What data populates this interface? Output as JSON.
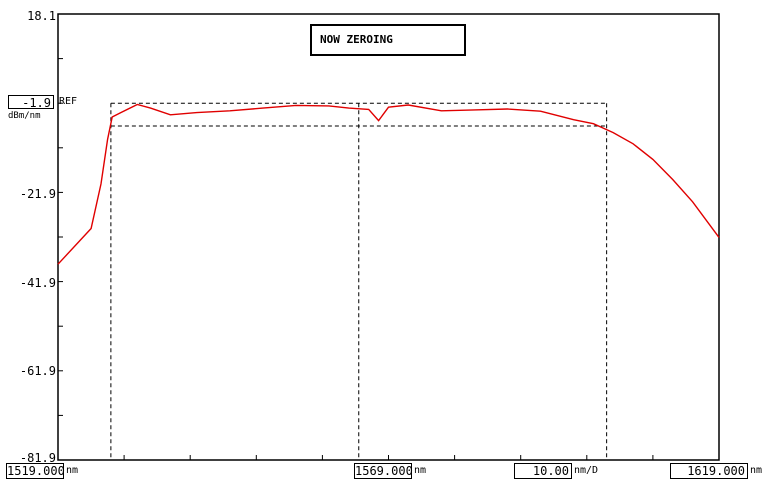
{
  "status": {
    "message": "NOW ZEROING"
  },
  "reference": {
    "level": "-1.9",
    "tag": "REF",
    "unit": "dBm/nm"
  },
  "y_axis": {
    "ticks": [
      "18.1",
      "-21.9",
      "-41.9",
      "-61.9",
      "-81.9"
    ]
  },
  "x_axis": {
    "start": {
      "value": "1519.000",
      "unit": "nm"
    },
    "center": {
      "value": "1569.000",
      "unit": "nm"
    },
    "span_per_div": {
      "value": "10.00",
      "unit": "nm/D"
    },
    "stop": {
      "value": "1619.000",
      "unit": "nm"
    }
  },
  "colors": {
    "trace": "#e00000",
    "frame": "#000000",
    "marker": "#000000"
  },
  "chart_data": {
    "type": "line",
    "xlim": [
      1519.0,
      1619.0
    ],
    "ylim": [
      -81.9,
      18.1
    ],
    "reference_level": -1.9,
    "markers_x": [
      1527.0,
      1564.5,
      1602.0
    ],
    "marker_levels": [
      -1.9,
      -7.0
    ],
    "series": [
      {
        "x": [
          1519.0,
          1524.0,
          1525.5,
          1526.5,
          1527.2,
          1528.5,
          1531.0,
          1533.0,
          1536.0,
          1540.0,
          1545.0,
          1550.0,
          1555.0,
          1560.0,
          1563.0,
          1566.0,
          1567.5,
          1569.0,
          1572.0,
          1577.0,
          1582.0,
          1587.0,
          1592.0,
          1597.0,
          1600.0,
          1603.0,
          1606.0,
          1609.0,
          1612.0,
          1615.0,
          1619.0
        ],
        "y": [
          -38.0,
          -30.0,
          -20.0,
          -10.0,
          -5.0,
          -4.0,
          -2.2,
          -3.0,
          -4.5,
          -4.0,
          -3.6,
          -3.0,
          -2.4,
          -2.5,
          -3.0,
          -3.3,
          -5.8,
          -2.8,
          -2.3,
          -3.6,
          -3.4,
          -3.2,
          -3.7,
          -5.6,
          -6.5,
          -8.5,
          -11.0,
          -14.5,
          -19.0,
          -24.0,
          -32.0
        ]
      }
    ]
  }
}
